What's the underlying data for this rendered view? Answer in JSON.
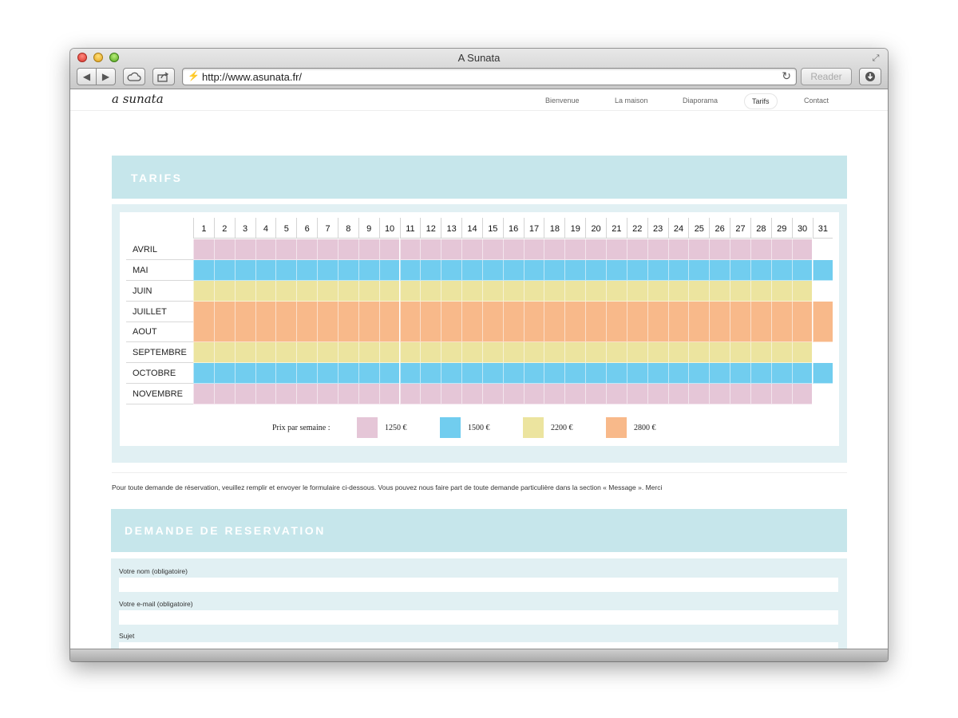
{
  "browser": {
    "window_title": "A Sunata",
    "url": "http://www.asunata.fr/",
    "reader_label": "Reader",
    "icons": [
      "back-arrow-icon",
      "forward-arrow-icon",
      "icloud-icon",
      "share-icon",
      "lock-icon",
      "reload-icon",
      "download-icon",
      "fullscreen-icon"
    ]
  },
  "site": {
    "logo": "a sunata",
    "nav": [
      {
        "label": "Bienvenue",
        "active": false
      },
      {
        "label": "La maison",
        "active": false
      },
      {
        "label": "Diaporama",
        "active": false
      },
      {
        "label": "Tarifs",
        "active": true
      },
      {
        "label": "Contact",
        "active": false
      }
    ]
  },
  "tarifs": {
    "title": "TARIFS",
    "days": [
      "1",
      "2",
      "3",
      "4",
      "5",
      "6",
      "7",
      "8",
      "9",
      "10",
      "11",
      "12",
      "13",
      "14",
      "15",
      "16",
      "17",
      "18",
      "19",
      "20",
      "21",
      "22",
      "23",
      "24",
      "25",
      "26",
      "27",
      "28",
      "29",
      "30",
      "31"
    ],
    "months": [
      {
        "label": "AVRIL",
        "days": 30,
        "tier": 0
      },
      {
        "label": "MAI",
        "days": 31,
        "tier": 1
      },
      {
        "label": "JUIN",
        "days": 30,
        "tier": 2
      },
      {
        "label": "JUILLET",
        "days": 31,
        "tier": 3
      },
      {
        "label": "AOUT",
        "days": 31,
        "tier": 3
      },
      {
        "label": "SEPTEMBRE",
        "days": 30,
        "tier": 2
      },
      {
        "label": "OCTOBRE",
        "days": 31,
        "tier": 1
      },
      {
        "label": "NOVEMBRE",
        "days": 30,
        "tier": 0
      }
    ],
    "legend_label": "Prix par semaine :",
    "legend": [
      {
        "price": "1250 €",
        "color": "#e5c6d7"
      },
      {
        "price": "1500 €",
        "color": "#71cdef"
      },
      {
        "price": "2200 €",
        "color": "#ece49f"
      },
      {
        "price": "2800 €",
        "color": "#f8b98a"
      }
    ]
  },
  "info_text": "Pour toute demande de réservation, veuillez remplir et envoyer le formulaire ci-dessous. Vous pouvez nous faire part de toute demande particulière dans la section « Message ». Merci",
  "reservation": {
    "title": "DEMANDE DE RESERVATION",
    "fields": [
      {
        "label": "Votre nom (obligatoire)",
        "value": ""
      },
      {
        "label": "Votre e-mail (obligatoire)",
        "value": ""
      },
      {
        "label": "Sujet",
        "value": ""
      }
    ]
  }
}
